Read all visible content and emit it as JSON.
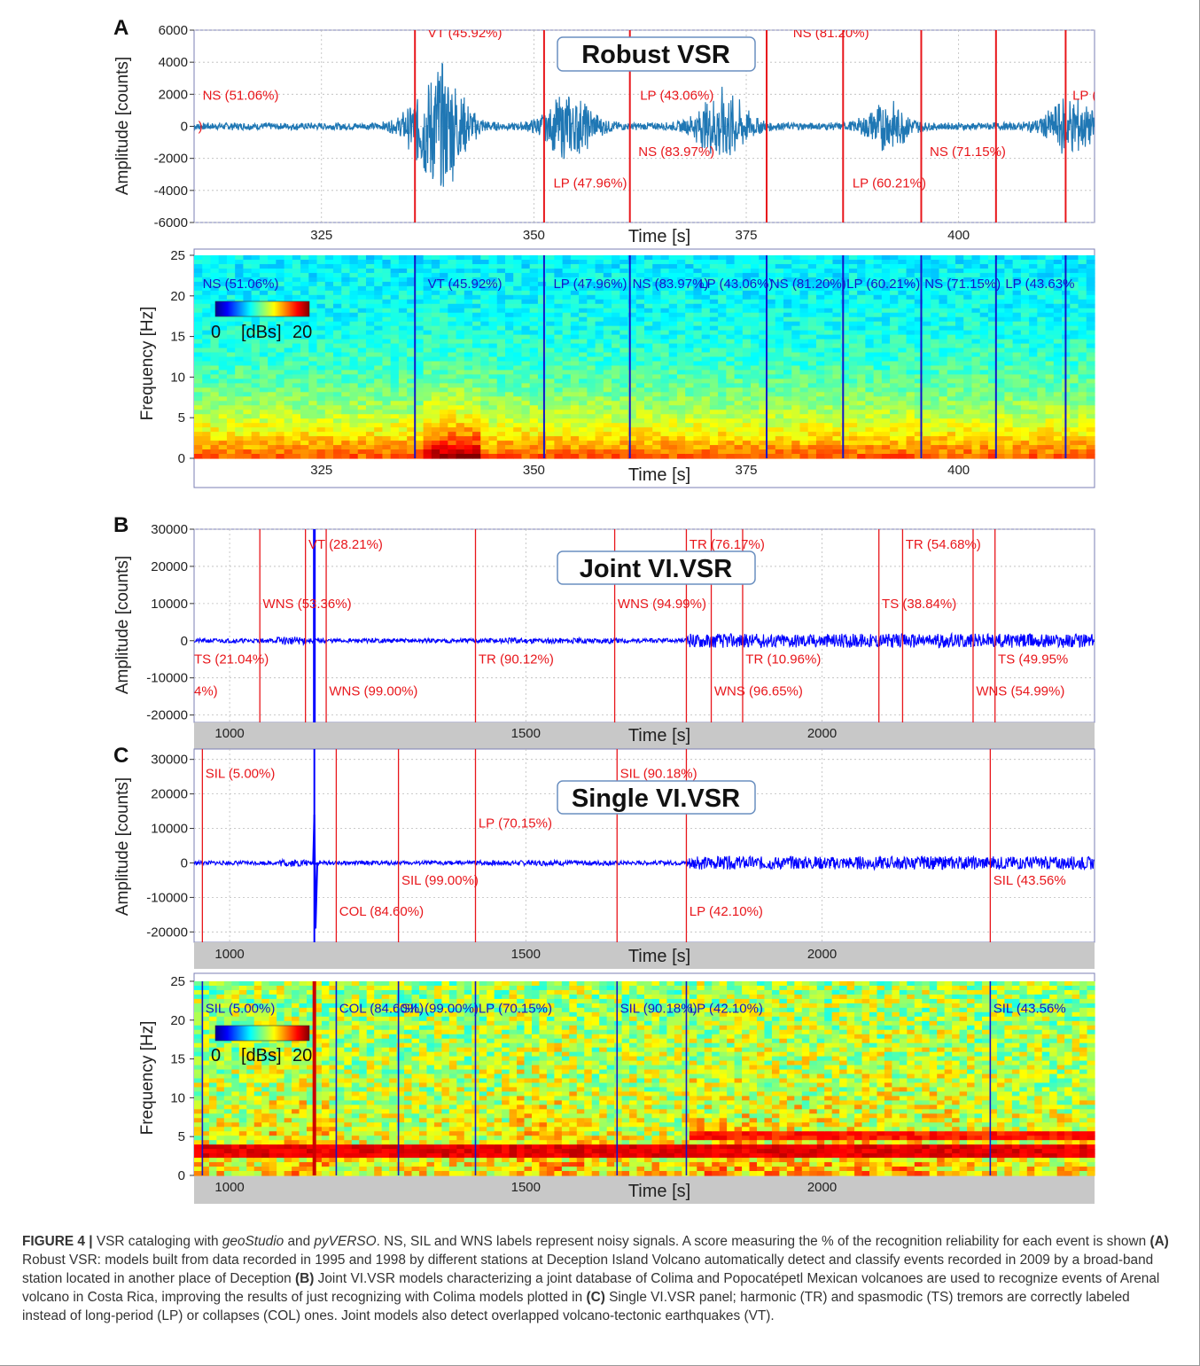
{
  "chart_data": [
    {
      "panel": "A",
      "type": "line",
      "title": "Robust VSR",
      "xlabel": "Time [s]",
      "ylabel": "Amplitude [counts]",
      "xlim": [
        310,
        416
      ],
      "ylim": [
        -6000,
        6000
      ],
      "x_ticks": [
        325,
        350,
        375,
        400
      ],
      "y_ticks": [
        6000,
        4000,
        2000,
        0,
        -2000,
        -4000,
        -6000
      ],
      "grid": true,
      "line_color": "#1f77b4",
      "boundary_color": "#e8161b",
      "boundaries": [
        336,
        351.2,
        361.3,
        377.4,
        386.4,
        395.6,
        404.4,
        412.6
      ],
      "events": [
        {
          "x": 311,
          "y": 11,
          "text": "NS (51.06%)",
          "anchor": "start"
        },
        {
          "x": 311,
          "y": 0,
          "text": ")",
          "anchor": "end"
        },
        {
          "x": 337.5,
          "y": 33,
          "text": "VT (45.92%)",
          "anchor": "start"
        },
        {
          "x": 352.3,
          "y": -20,
          "text": "LP (47.96%)",
          "anchor": "start"
        },
        {
          "x": 362.3,
          "y": -9,
          "text": "NS (83.97%)",
          "anchor": "start"
        },
        {
          "x": 362.5,
          "y": 11,
          "text": "LP (43.06%)",
          "anchor": "start"
        },
        {
          "x": 380.5,
          "y": 33,
          "text": "NS (81.20%)",
          "anchor": "start"
        },
        {
          "x": 387.5,
          "y": -20,
          "text": "LP (60.21%)",
          "anchor": "start"
        },
        {
          "x": 396.6,
          "y": -9,
          "text": "NS (71.15%)",
          "anchor": "start"
        },
        {
          "x": 413.4,
          "y": 11,
          "text": "LP (43.63%",
          "anchor": "start"
        }
      ],
      "events_observed": [
        [
          337.5,
          "VT"
        ],
        [
          352,
          "LP"
        ],
        [
          363,
          "LP"
        ],
        [
          388,
          "LP"
        ],
        [
          413,
          "LP"
        ]
      ]
    },
    {
      "panel": "A-spectrogram",
      "type": "heatmap",
      "xlabel": "Time [s]",
      "ylabel": "Frequency [Hz]",
      "xlim": [
        310,
        416
      ],
      "ylim": [
        0,
        25
      ],
      "x_ticks": [
        325,
        350,
        375,
        400
      ],
      "y_ticks": [
        25,
        20,
        15,
        10,
        5,
        0
      ],
      "colorbar": {
        "min": "0",
        "max": "20",
        "unit": "[dBs]"
      },
      "boundary_color": "#1515c8",
      "boundaries": [
        336,
        351.2,
        361.3,
        377.4,
        386.4,
        395.6,
        404.4,
        412.6
      ],
      "labels": [
        {
          "x": 311,
          "text": "NS (51.06%)"
        },
        {
          "x": 337.5,
          "text": "VT (45.92%)"
        },
        {
          "x": 352.3,
          "text": "LP (47.96%)"
        },
        {
          "x": 361.6,
          "text": "NS (83.97%)"
        },
        {
          "x": 369.5,
          "text": "LP (43.06%)"
        },
        {
          "x": 377.8,
          "text": "NS (81.20%)"
        },
        {
          "x": 386.8,
          "text": "LP (60.21%)"
        },
        {
          "x": 396,
          "text": "NS (71.15%)"
        },
        {
          "x": 405.5,
          "text": "LP (43.63%"
        }
      ]
    },
    {
      "panel": "B",
      "type": "line",
      "title": "Joint VI.VSR",
      "xlabel": "Time [s]",
      "ylabel": "Amplitude [counts]",
      "xlim": [
        940,
        2460
      ],
      "ylim": [
        -22000,
        30000
      ],
      "x_ticks": [
        1000,
        1500,
        2000
      ],
      "y_ticks": [
        30000,
        20000,
        10000,
        0,
        -10000,
        -20000
      ],
      "grid": true,
      "line_color": "#0000ff",
      "boundary_color": "#e8161b",
      "spike_x": 1143,
      "boundaries": [
        1051,
        1128,
        1163,
        1415,
        1650,
        1771,
        1813,
        1866,
        2096,
        2136,
        2255,
        2292
      ],
      "events": [
        {
          "x": 1056,
          "y": 10000,
          "text": "WNS (53.36%)"
        },
        {
          "x": 1133,
          "y": 26000,
          "text": "VT (28.21%)"
        },
        {
          "x": 940,
          "y": -5000,
          "text": "TS (21.04%)"
        },
        {
          "x": 940,
          "y": -13500,
          "text": "4%)"
        },
        {
          "x": 1168,
          "y": -13500,
          "text": "WNS (99.00%)"
        },
        {
          "x": 1420,
          "y": -5000,
          "text": "TR (90.12%)"
        },
        {
          "x": 1655,
          "y": 10000,
          "text": "WNS (94.99%)"
        },
        {
          "x": 1776,
          "y": 26000,
          "text": "TR (76.17%)"
        },
        {
          "x": 1818,
          "y": -13500,
          "text": "WNS (96.65%)"
        },
        {
          "x": 1871,
          "y": -5000,
          "text": "TR (10.96%)"
        },
        {
          "x": 2101,
          "y": 10000,
          "text": "TS (38.84%)"
        },
        {
          "x": 2141,
          "y": 26000,
          "text": "TR (54.68%)"
        },
        {
          "x": 2260,
          "y": -13500,
          "text": "WNS (54.99%)"
        },
        {
          "x": 2297,
          "y": -5000,
          "text": "TS (49.95%"
        }
      ]
    },
    {
      "panel": "C",
      "type": "line",
      "title": "Single VI.VSR",
      "xlabel": "Time [s]",
      "ylabel": "Amplitude [counts]",
      "xlim": [
        940,
        2460
      ],
      "ylim": [
        -23000,
        33000
      ],
      "x_ticks": [
        1000,
        1500,
        2000
      ],
      "y_ticks": [
        30000,
        20000,
        10000,
        0,
        -10000,
        -20000
      ],
      "grid": true,
      "line_color": "#0000ff",
      "boundary_color": "#e8161b",
      "spike_x": 1143,
      "boundaries": [
        954,
        1180,
        1285,
        1415,
        1654,
        1771,
        2284
      ],
      "events": [
        {
          "x": 959,
          "y": 26000,
          "text": "SIL (5.00%)"
        },
        {
          "x": 1185,
          "y": -14000,
          "text": "COL (84.60%)"
        },
        {
          "x": 1290,
          "y": -5000,
          "text": "SIL (99.00%)"
        },
        {
          "x": 1420,
          "y": 11500,
          "text": "LP (70.15%)"
        },
        {
          "x": 1659,
          "y": 26000,
          "text": "SIL (90.18%)"
        },
        {
          "x": 1776,
          "y": -14000,
          "text": "LP (42.10%)"
        },
        {
          "x": 2289,
          "y": -5000,
          "text": "SIL (43.56%"
        }
      ]
    },
    {
      "panel": "C-spectrogram",
      "type": "heatmap",
      "xlabel": "Time [s]",
      "ylabel": "Frequency [Hz]",
      "xlim": [
        940,
        2460
      ],
      "ylim": [
        0,
        25
      ],
      "x_ticks": [
        1000,
        1500,
        2000
      ],
      "y_ticks": [
        25,
        20,
        15,
        10,
        5,
        0
      ],
      "colorbar": {
        "min": "0",
        "max": "20",
        "unit": "[dBs]"
      },
      "boundary_color": "#1515c8",
      "boundaries": [
        954,
        1180,
        1285,
        1415,
        1654,
        1771,
        2284
      ],
      "labels": [
        {
          "x": 959,
          "text": "SIL (5.00%)"
        },
        {
          "x": 1185,
          "text": "COL (84.60%)"
        },
        {
          "x": 1290,
          "text": "SIL (99.00%)"
        },
        {
          "x": 1420,
          "text": "LP (70.15%)"
        },
        {
          "x": 1659,
          "text": "SIL (90.18%)"
        },
        {
          "x": 1776,
          "text": "LP (42.10%)"
        },
        {
          "x": 2289,
          "text": "SIL (43.56%"
        }
      ]
    }
  ],
  "caption": {
    "lead": "FIGURE 4 |",
    "p1": " VSR cataloging with ",
    "geostudio": "geoStudio",
    "and": " and ",
    "pyverso": "pyVERSO",
    "p2": ". NS, SIL and WNS labels represent noisy signals. A score measuring the % of the recognition reliability for each event is shown ",
    "a": "(A)",
    "p3": " Robust VSR: models built from data recorded in 1995 and 1998 by different stations at Deception Island Volcano automatically detect and classify events recorded in 2009 by a broad-band station located in another place of Deception ",
    "b": "(B)",
    "p4": " Joint VI.VSR models characterizing a joint database of Colima and Popocatépetl Mexican volcanoes are used to recognize events of Arenal volcano in Costa Rica, improving the results of just recognizing with Colima models plotted in ",
    "c": "(C)",
    "p5": " Single VI.VSR panel; harmonic (TR) and spasmodic (TS) tremors are correctly labeled instead of long-period (LP) or collapses (COL) ones. Joint models also detect overlapped volcano-tectonic earthquakes (VT)."
  },
  "panel_letters": [
    "A",
    "B",
    "C"
  ]
}
